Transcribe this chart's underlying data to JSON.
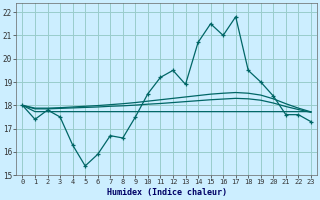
{
  "xlabel": "Humidex (Indice chaleur)",
  "ylabel": "",
  "background_color": "#cceeff",
  "grid_color": "#99cccc",
  "line_color": "#006666",
  "xlim": [
    -0.5,
    23.5
  ],
  "ylim": [
    15,
    22.4
  ],
  "xticks": [
    0,
    1,
    2,
    3,
    4,
    5,
    6,
    7,
    8,
    9,
    10,
    11,
    12,
    13,
    14,
    15,
    16,
    17,
    18,
    19,
    20,
    21,
    22,
    23
  ],
  "yticks": [
    15,
    16,
    17,
    18,
    19,
    20,
    21,
    22
  ],
  "main_line": [
    18.0,
    17.4,
    17.8,
    17.5,
    16.3,
    15.4,
    15.9,
    16.7,
    16.6,
    17.5,
    18.5,
    19.2,
    19.5,
    18.9,
    20.7,
    21.5,
    21.0,
    21.8,
    19.5,
    19.0,
    18.4,
    17.6,
    17.6,
    17.3
  ],
  "trend_line1": [
    18.0,
    17.85,
    17.85,
    17.87,
    17.89,
    17.91,
    17.93,
    17.96,
    17.98,
    18.01,
    18.05,
    18.08,
    18.12,
    18.16,
    18.2,
    18.24,
    18.27,
    18.3,
    18.28,
    18.22,
    18.1,
    17.95,
    17.82,
    17.7
  ],
  "trend_line2": [
    18.0,
    17.88,
    17.88,
    17.9,
    17.93,
    17.96,
    17.99,
    18.03,
    18.07,
    18.12,
    18.18,
    18.24,
    18.3,
    18.36,
    18.42,
    18.48,
    18.52,
    18.55,
    18.52,
    18.44,
    18.28,
    18.07,
    17.88,
    17.72
  ],
  "trend_line3": [
    18.0,
    17.73,
    17.73,
    17.73,
    17.73,
    17.73,
    17.73,
    17.73,
    17.73,
    17.73,
    17.73,
    17.73,
    17.73,
    17.73,
    17.73,
    17.73,
    17.73,
    17.73,
    17.73,
    17.73,
    17.73,
    17.73,
    17.73,
    17.73
  ]
}
